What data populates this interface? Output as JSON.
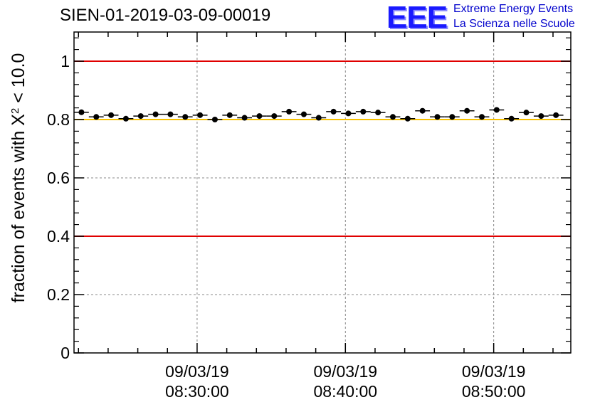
{
  "title": "SIEN-01-2019-03-09-00019",
  "logo": {
    "mark": "EEE",
    "line1": "Extreme Energy Events",
    "line2": "La Scienza nelle Scuole"
  },
  "colors": {
    "limit_line": "#e00000",
    "mean_line": "#f5c000",
    "marker": "#000000",
    "grid": "#888888"
  },
  "chart_data": {
    "type": "scatter",
    "title": "SIEN-01-2019-03-09-00019",
    "xlabel": "",
    "ylabel_main": "fraction of events with X",
    "ylabel_sup": "2",
    "ylabel_tail": " < 10.0",
    "x_unit": "minutes since 08:30:00",
    "xlim": [
      -8.3,
      25.2
    ],
    "ylim": [
      0,
      1.1
    ],
    "y_ticks": [
      0,
      0.2,
      0.4,
      0.6,
      0.8,
      1
    ],
    "y_tick_labels": [
      "0",
      "0.2",
      "0.4",
      "0.6",
      "0.8",
      "1"
    ],
    "x_ticks": [
      0,
      10,
      20
    ],
    "x_tick_labels": [
      {
        "date": "09/03/19",
        "time": "08:30:00"
      },
      {
        "date": "09/03/19",
        "time": "08:40:00"
      },
      {
        "date": "09/03/19",
        "time": "08:50:00"
      }
    ],
    "reference_lines": [
      {
        "name": "upper-limit",
        "y": 1.0,
        "color": "#e00000"
      },
      {
        "name": "lower-limit",
        "y": 0.4,
        "color": "#e00000"
      },
      {
        "name": "mean",
        "y": 0.8,
        "color": "#f5c000"
      }
    ],
    "bin_halfwidth": 0.5,
    "x": [
      -7.8,
      -6.8,
      -5.8,
      -4.8,
      -3.8,
      -2.8,
      -1.8,
      -0.8,
      0.2,
      1.2,
      2.2,
      3.2,
      4.2,
      5.2,
      6.2,
      7.2,
      8.2,
      9.2,
      10.2,
      11.2,
      12.2,
      13.2,
      14.2,
      15.2,
      16.2,
      17.2,
      18.2,
      19.2,
      20.2,
      21.2,
      22.2,
      23.2,
      24.2
    ],
    "y": [
      0.825,
      0.809,
      0.815,
      0.803,
      0.812,
      0.818,
      0.818,
      0.809,
      0.815,
      0.8,
      0.815,
      0.806,
      0.812,
      0.812,
      0.827,
      0.818,
      0.806,
      0.827,
      0.821,
      0.827,
      0.824,
      0.809,
      0.803,
      0.83,
      0.809,
      0.809,
      0.83,
      0.809,
      0.833,
      0.803,
      0.824,
      0.812,
      0.815
    ],
    "y_err": [
      0.004,
      0.004,
      0.004,
      0.004,
      0.004,
      0.004,
      0.004,
      0.004,
      0.004,
      0.004,
      0.004,
      0.004,
      0.004,
      0.004,
      0.004,
      0.004,
      0.004,
      0.004,
      0.004,
      0.004,
      0.004,
      0.004,
      0.004,
      0.004,
      0.004,
      0.004,
      0.004,
      0.004,
      0.004,
      0.004,
      0.004,
      0.004,
      0.004
    ]
  }
}
